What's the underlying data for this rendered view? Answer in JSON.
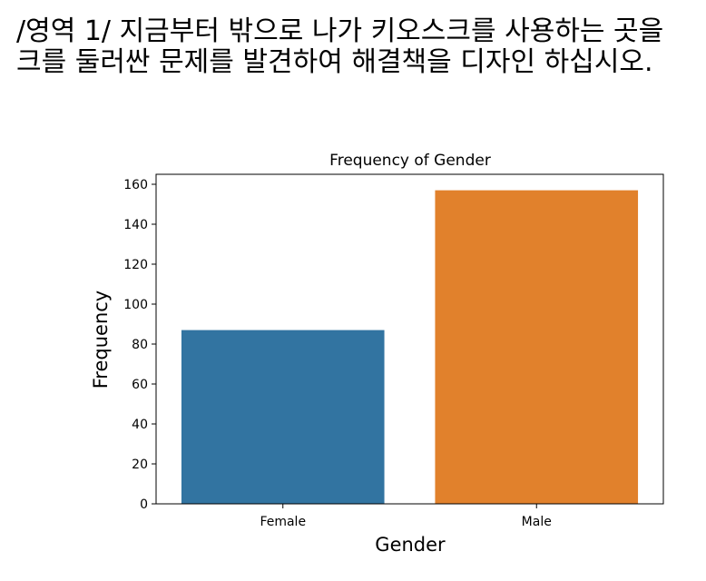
{
  "heading": {
    "line1": "/영역 1/ 지금부터 밖으로 나가 키오스크를 사용하는 곳을",
    "line2": "크를 둘러싼 문제를 발견하여 해결책을 디자인 하십시오."
  },
  "chart_data": {
    "type": "bar",
    "title": "Frequency of Gender",
    "xlabel": "Gender",
    "ylabel": "Frequency",
    "categories": [
      "Female",
      "Male"
    ],
    "values": [
      87,
      157
    ],
    "colors": [
      "#3274a1",
      "#e1812c"
    ],
    "ylim": [
      0,
      165
    ],
    "yticks": [
      0,
      20,
      40,
      60,
      80,
      100,
      120,
      140,
      160
    ],
    "grid": false,
    "legend": "none"
  }
}
